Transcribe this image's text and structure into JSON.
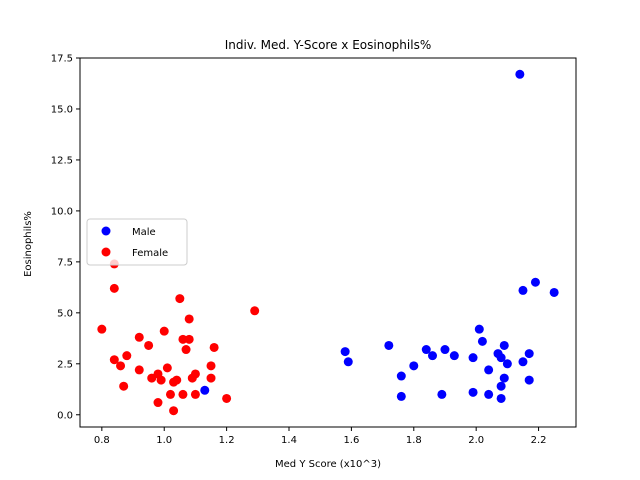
{
  "chart_data": {
    "type": "scatter",
    "title": "Indiv. Med. Y-Score x Eosinophils%",
    "xlabel": "Med Y Score (x10^3)",
    "ylabel": "Eosinophils%",
    "xlim": [
      0.73,
      2.32
    ],
    "ylim": [
      -0.6,
      17.5
    ],
    "xticks": [
      "0.8",
      "1.0",
      "1.2",
      "1.4",
      "1.6",
      "1.8",
      "2.0",
      "2.2"
    ],
    "xtick_values": [
      0.8,
      1.0,
      1.2,
      1.4,
      1.6,
      1.8,
      2.0,
      2.2
    ],
    "yticks": [
      "0.0",
      "2.5",
      "5.0",
      "7.5",
      "10.0",
      "12.5",
      "15.0",
      "17.5"
    ],
    "ytick_values": [
      0.0,
      2.5,
      5.0,
      7.5,
      10.0,
      12.5,
      15.0,
      17.5
    ],
    "grid": false,
    "legend_position": "center-left",
    "series": [
      {
        "name": "Male",
        "color": "#0000ff",
        "points": [
          [
            1.13,
            1.2
          ],
          [
            1.58,
            3.1
          ],
          [
            1.59,
            2.6
          ],
          [
            1.72,
            3.4
          ],
          [
            1.76,
            1.9
          ],
          [
            1.76,
            0.9
          ],
          [
            1.8,
            2.4
          ],
          [
            1.84,
            3.2
          ],
          [
            1.86,
            2.9
          ],
          [
            1.89,
            1.0
          ],
          [
            1.9,
            3.2
          ],
          [
            1.93,
            2.9
          ],
          [
            1.99,
            2.8
          ],
          [
            1.99,
            1.1
          ],
          [
            2.01,
            4.2
          ],
          [
            2.02,
            3.6
          ],
          [
            2.04,
            2.2
          ],
          [
            2.04,
            1.0
          ],
          [
            2.07,
            3.0
          ],
          [
            2.08,
            2.8
          ],
          [
            2.09,
            3.4
          ],
          [
            2.08,
            1.4
          ],
          [
            2.09,
            1.8
          ],
          [
            2.08,
            0.8
          ],
          [
            2.1,
            2.5
          ],
          [
            2.14,
            16.7
          ],
          [
            2.15,
            6.1
          ],
          [
            2.15,
            2.6
          ],
          [
            2.17,
            3.0
          ],
          [
            2.17,
            1.7
          ],
          [
            2.19,
            6.5
          ],
          [
            2.25,
            6.0
          ]
        ]
      },
      {
        "name": "Female",
        "color": "#ff0000",
        "points": [
          [
            0.8,
            4.2
          ],
          [
            0.84,
            7.4
          ],
          [
            0.84,
            6.2
          ],
          [
            0.84,
            2.7
          ],
          [
            0.86,
            2.4
          ],
          [
            0.87,
            1.4
          ],
          [
            0.88,
            2.9
          ],
          [
            0.92,
            3.8
          ],
          [
            0.92,
            2.2
          ],
          [
            0.95,
            3.4
          ],
          [
            0.96,
            1.8
          ],
          [
            0.98,
            2.0
          ],
          [
            0.98,
            0.6
          ],
          [
            0.99,
            1.7
          ],
          [
            1.0,
            4.1
          ],
          [
            1.01,
            2.3
          ],
          [
            1.02,
            1.0
          ],
          [
            1.03,
            1.6
          ],
          [
            1.03,
            0.2
          ],
          [
            1.04,
            1.7
          ],
          [
            1.05,
            5.7
          ],
          [
            1.06,
            3.7
          ],
          [
            1.06,
            1.0
          ],
          [
            1.07,
            3.2
          ],
          [
            1.08,
            4.7
          ],
          [
            1.08,
            3.7
          ],
          [
            1.09,
            1.8
          ],
          [
            1.1,
            2.0
          ],
          [
            1.1,
            1.0
          ],
          [
            1.15,
            2.4
          ],
          [
            1.15,
            1.8
          ],
          [
            1.16,
            3.3
          ],
          [
            1.2,
            0.8
          ],
          [
            1.29,
            5.1
          ]
        ]
      }
    ]
  }
}
